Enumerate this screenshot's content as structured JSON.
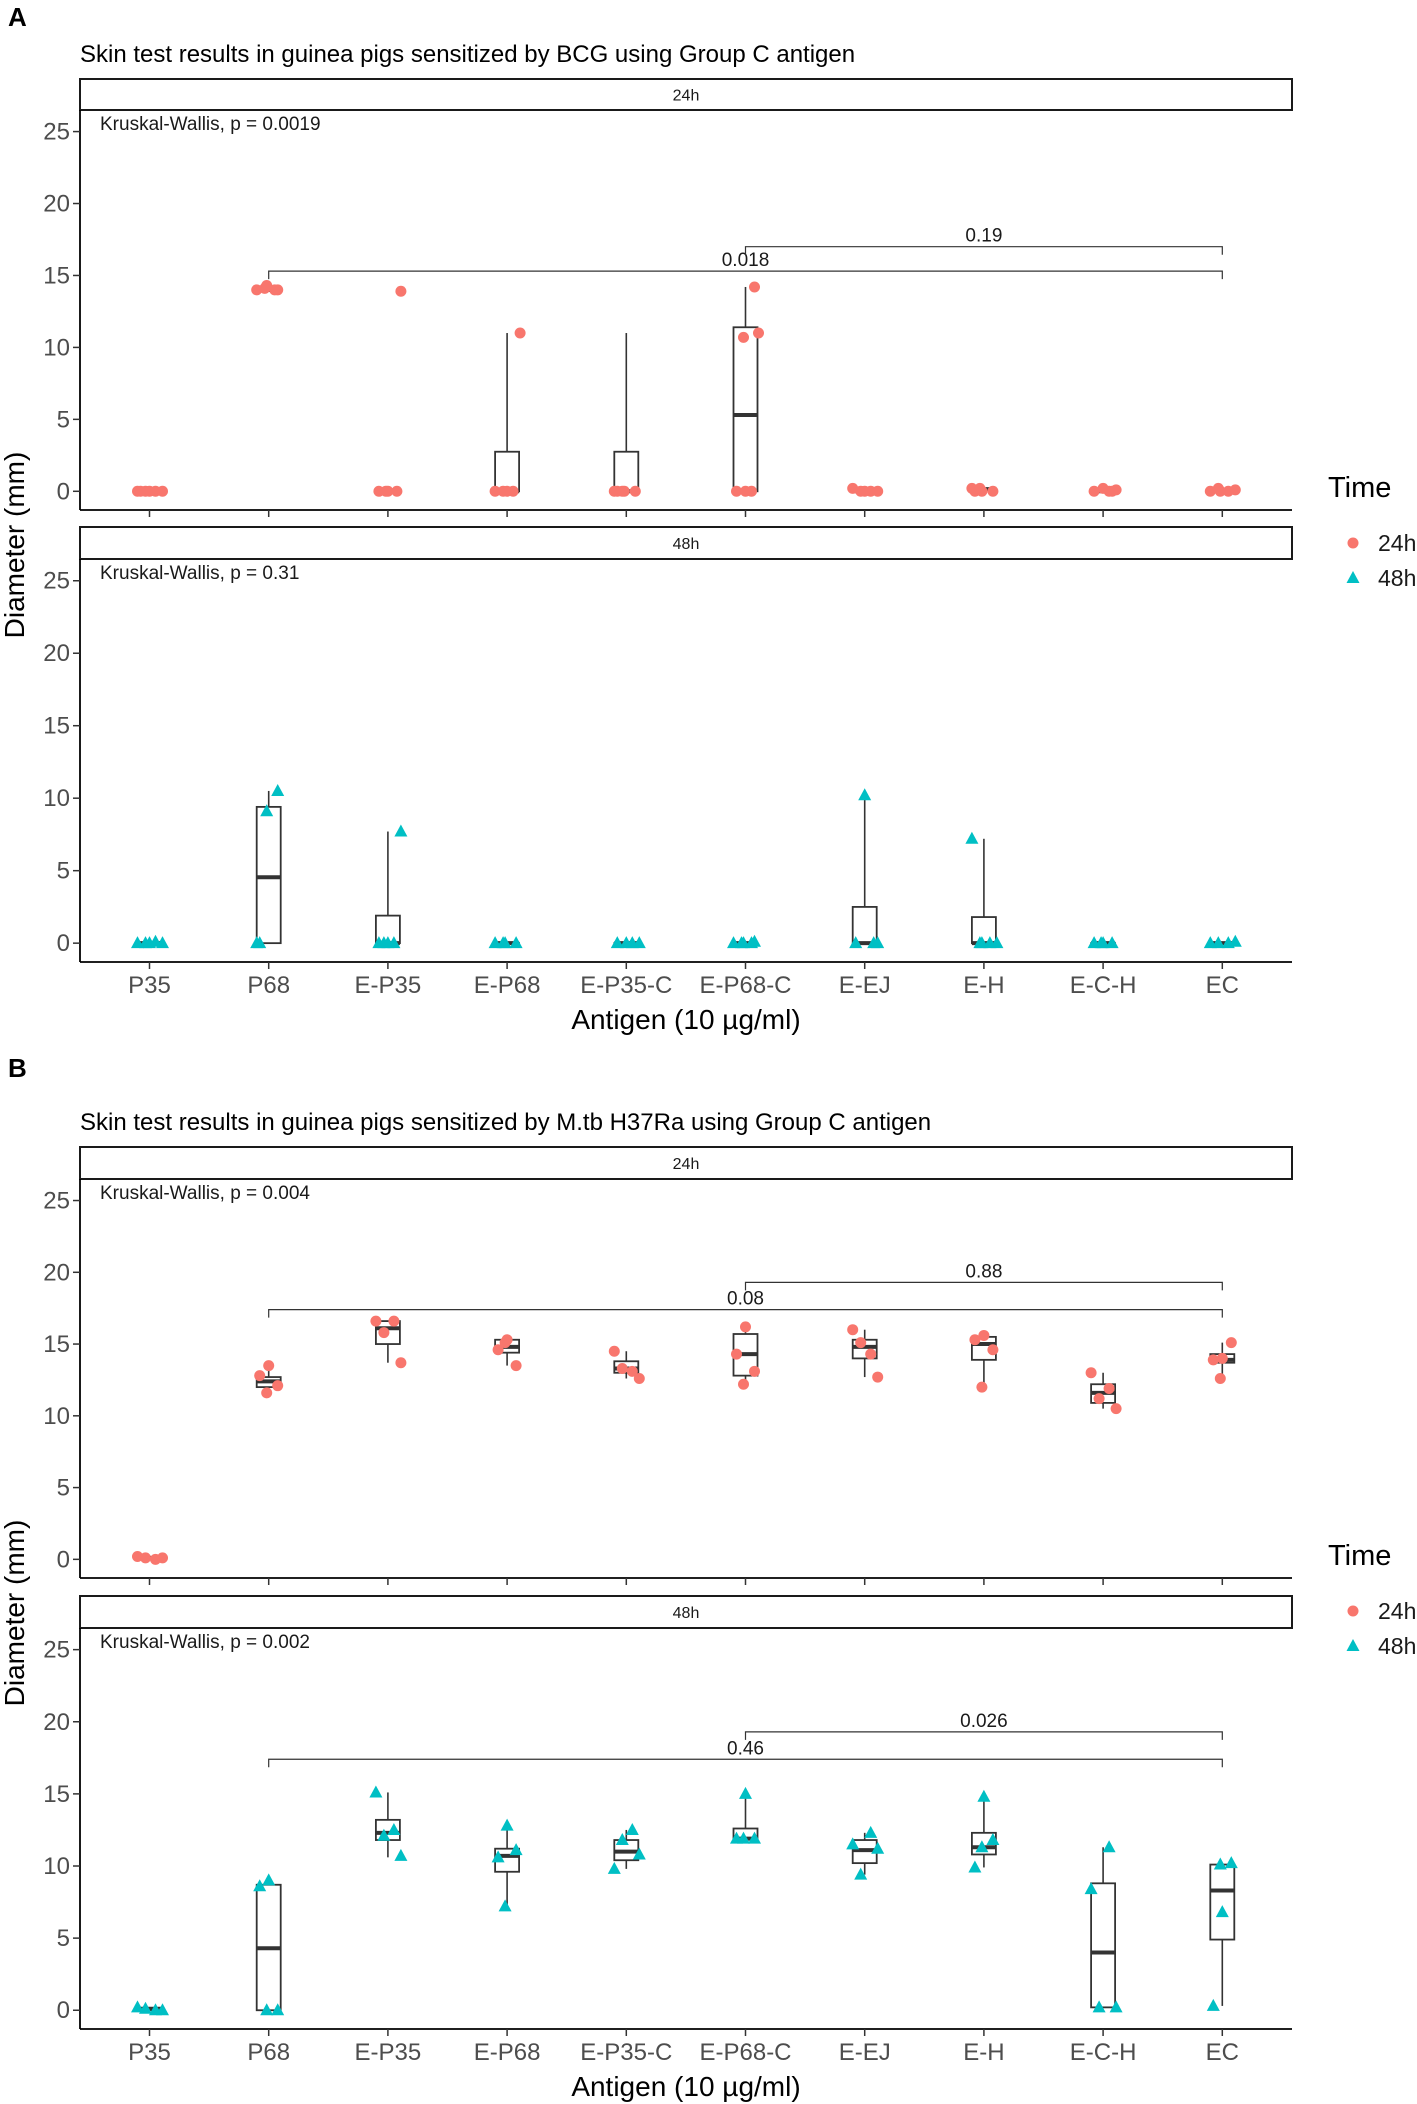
{
  "colors": {
    "h24": "#F8766D",
    "h48": "#00BFC4"
  },
  "legend": {
    "title": "Time",
    "items": [
      "24h",
      "48h"
    ]
  },
  "chart_data": [
    {
      "type": "box",
      "panel_label": "A",
      "title": "Skin test results in guinea pigs sensitized by BCG using Group C antigen",
      "xlabel": "Antigen (10 µg/ml)",
      "ylabel": "Diameter (mm)",
      "categories": [
        "P35",
        "P68",
        "E-P35",
        "E-P68",
        "E-P35-C",
        "E-P68-C",
        "E-EJ",
        "E-H",
        "E-C-H",
        "EC"
      ],
      "ylim": [
        -1.3,
        26.5
      ],
      "yticks": [
        0,
        5,
        10,
        15,
        20,
        25
      ],
      "facets": [
        {
          "strip": "24h",
          "time": "24h",
          "kw": "Kruskal-Wallis, p = 0.0019",
          "points": [
            [
              0,
              0
            ],
            [
              0,
              0
            ],
            [
              0,
              0
            ],
            [
              14,
              14.3
            ],
            [
              14,
              14.1
            ],
            [
              14,
              13.9
            ],
            [
              0,
              0
            ],
            [
              0,
              0
            ],
            [
              0,
              0
            ],
            [
              0,
              11
            ],
            [
              0,
              0
            ],
            [
              0,
              0
            ],
            [
              0,
              0
            ],
            [
              0,
              11
            ],
            [
              0,
              0
            ],
            [
              14.2,
              10.7
            ],
            [
              0.2,
              0
            ],
            [
              0,
              0
            ],
            [
              0,
              0
            ],
            [
              0,
              0
            ],
            [
              0.2,
              0.2
            ],
            [
              0,
              0.1
            ],
            [
              0.2,
              0
            ],
            [
              0,
              0
            ],
            [
              0,
              0.2
            ],
            [
              0,
              0.1
            ]
          ],
          "boxes": [
            [
              0,
              0,
              0,
              0,
              0
            ],
            [
              13.9,
              14,
              14,
              14.1,
              14.3
            ],
            [
              0,
              0,
              0,
              0,
              0
            ],
            [
              0,
              0,
              0,
              2.75,
              11
            ],
            [
              0,
              0,
              0,
              2.75,
              11
            ],
            [
              0,
              0,
              5.3,
              11.4,
              14.2
            ],
            [
              0,
              0,
              0,
              0,
              0
            ],
            [
              0.1,
              0.1,
              0.15,
              0.2,
              0.2
            ],
            [
              0,
              0,
              0,
              0.1,
              0.2
            ],
            [
              0,
              0,
              0.05,
              0.1,
              0.2
            ]
          ],
          "brackets": [
            {
              "from": "P68",
              "to": "EC",
              "label": "0.018",
              "y": 15.3
            },
            {
              "from": "E-P68-C",
              "to": "EC",
              "label": "0.19",
              "y": 17
            }
          ]
        },
        {
          "strip": "48h",
          "time": "48h",
          "kw": "Kruskal-Wallis, p = 0.31",
          "points": [
            [
              0,
              0
            ],
            [
              0.1,
              0
            ],
            [
              0,
              0
            ],
            [
              10.5,
              9.1
            ],
            [
              0,
              0
            ],
            [
              0,
              7.7
            ],
            [
              0,
              0
            ],
            [
              0,
              0
            ],
            [
              0,
              0
            ],
            [
              0,
              0
            ],
            [
              0,
              0
            ],
            [
              0.1,
              0
            ],
            [
              0,
              0
            ],
            [
              0,
              0
            ],
            [
              10.2,
              0
            ],
            [
              0,
              0
            ],
            [
              7.2,
              0
            ],
            [
              0,
              0
            ],
            [
              0,
              0
            ],
            [
              0,
              0
            ],
            [
              0,
              0
            ],
            [
              0,
              0.1
            ]
          ],
          "boxes": [
            [
              0,
              0,
              0,
              0,
              0
            ],
            [
              0,
              0,
              4.55,
              9.4,
              10.5
            ],
            [
              0,
              0,
              0,
              1.9,
              7.7
            ],
            [
              0,
              0,
              0,
              0,
              0
            ],
            [
              0,
              0,
              0,
              0,
              0
            ],
            [
              0,
              0,
              0,
              0,
              0
            ],
            [
              0,
              0,
              0,
              2.5,
              10.2
            ],
            [
              0,
              0,
              0,
              1.8,
              7.2
            ],
            [
              0,
              0,
              0,
              0,
              0
            ],
            [
              0,
              0,
              0,
              0,
              0.1
            ]
          ],
          "brackets": []
        }
      ]
    },
    {
      "type": "box",
      "panel_label": "B",
      "title": "Skin test results in guinea pigs sensitized by M.tb H37Ra using Group C antigen",
      "xlabel": "Antigen (10 µg/ml)",
      "ylabel": "Diameter (mm)",
      "categories": [
        "P35",
        "P68",
        "E-P35",
        "E-P68",
        "E-P35-C",
        "E-P68-C",
        "E-EJ",
        "E-H",
        "E-C-H",
        "EC"
      ],
      "ylim": [
        -1.3,
        26.5
      ],
      "yticks": [
        0,
        5,
        10,
        15,
        20,
        25
      ],
      "facets": [
        {
          "strip": "24h",
          "time": "24h",
          "kw": "Kruskal-Wallis, p = 0.004",
          "points": [
            [
              0.2,
              0.1
            ],
            [
              0,
              0.1
            ],
            [
              13.5,
              12.8
            ],
            [
              12.1,
              11.6
            ],
            [
              16.6,
              15.8
            ],
            [
              16.6,
              13.7
            ],
            [
              15.3,
              14.6
            ],
            [
              13.5,
              15.1
            ],
            [
              14.5,
              13.3
            ],
            [
              13.1,
              12.6
            ],
            [
              16.2,
              14.3
            ],
            [
              13.1,
              12.2
            ],
            [
              16,
              15.1
            ],
            [
              14.3,
              12.7
            ],
            [
              15.6,
              15.3
            ],
            [
              14.6,
              12
            ],
            [
              13,
              11.2
            ],
            [
              11.9,
              10.5
            ],
            [
              14,
              13.9
            ],
            [
              15.1,
              12.6
            ]
          ],
          "boxes": [
            [
              0,
              0.05,
              0.1,
              0.15,
              0.2
            ],
            [
              11.6,
              12,
              12.4,
              12.7,
              13.5
            ],
            [
              13.7,
              15,
              16.1,
              16.6,
              16.6
            ],
            [
              13.5,
              14.4,
              14.8,
              15.3,
              15.3
            ],
            [
              12.6,
              13,
              13.3,
              13.8,
              14.5
            ],
            [
              12.2,
              12.8,
              14.3,
              15.7,
              16.2
            ],
            [
              12.7,
              14,
              14.8,
              15.3,
              16
            ],
            [
              12,
              13.9,
              15,
              15.5,
              15.6
            ],
            [
              10.5,
              10.9,
              11.6,
              12.2,
              13
            ],
            [
              12.6,
              13.7,
              13.9,
              14.3,
              15.1
            ]
          ],
          "brackets": [
            {
              "from": "P68",
              "to": "EC",
              "label": "0.08",
              "y": 17.4
            },
            {
              "from": "E-P68-C",
              "to": "EC",
              "label": "0.88",
              "y": 19.3
            }
          ]
        },
        {
          "strip": "48h",
          "time": "48h",
          "kw": "Kruskal-Wallis, p = 0.002",
          "points": [
            [
              0.2,
              0.1
            ],
            [
              0,
              0
            ],
            [
              9,
              8.6
            ],
            [
              0,
              0
            ],
            [
              15.1,
              12.1
            ],
            [
              12.5,
              10.7
            ],
            [
              12.8,
              10.6
            ],
            [
              11.1,
              7.2
            ],
            [
              9.8,
              11.8
            ],
            [
              12.5,
              10.8
            ],
            [
              15,
              11.9
            ],
            [
              11.9,
              11.9
            ],
            [
              11.5,
              9.4
            ],
            [
              12.3,
              11.2
            ],
            [
              14.8,
              9.9
            ],
            [
              11.8,
              11.3
            ],
            [
              8.4,
              0.2
            ],
            [
              11.3,
              0.2
            ],
            [
              6.8,
              0.3
            ],
            [
              10.2,
              10.1
            ]
          ],
          "boxes": [
            [
              0,
              0,
              0.1,
              0.15,
              0.2
            ],
            [
              0,
              0,
              4.3,
              8.7,
              9
            ],
            [
              10.6,
              11.8,
              12.3,
              13.2,
              15.1
            ],
            [
              7.2,
              9.6,
              10.7,
              11.2,
              12.8
            ],
            [
              9.8,
              10.4,
              11,
              11.8,
              12.5
            ],
            [
              11.9,
              11.9,
              11.9,
              12.6,
              15
            ],
            [
              9.4,
              10.2,
              11.1,
              11.8,
              12.3
            ],
            [
              9.9,
              10.8,
              11.3,
              12.3,
              14.8
            ],
            [
              0.2,
              0.2,
              4,
              8.8,
              11.3
            ],
            [
              0.3,
              4.9,
              8.3,
              10.1,
              10.2
            ]
          ],
          "brackets": [
            {
              "from": "P68",
              "to": "EC",
              "label": "0.46",
              "y": 17.4
            },
            {
              "from": "E-P68-C",
              "to": "EC",
              "label": "0.026",
              "y": 19.3
            }
          ]
        }
      ]
    }
  ]
}
